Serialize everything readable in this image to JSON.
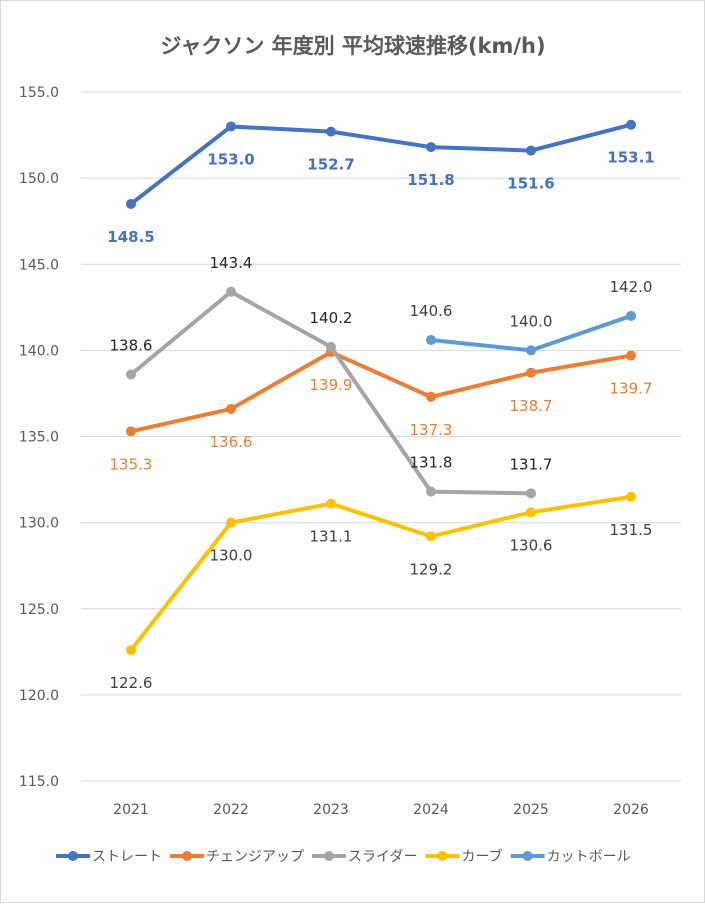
{
  "chart_data": {
    "type": "line",
    "title": "ジャクソン 年度別 平均球速推移(km/h)",
    "xlabel": "",
    "ylabel": "",
    "categories": [
      "2021",
      "2022",
      "2023",
      "2024",
      "2025",
      "2026"
    ],
    "ylim": [
      115,
      155
    ],
    "yticks": [
      "115.0",
      "120.0",
      "125.0",
      "130.0",
      "135.0",
      "140.0",
      "145.0",
      "150.0",
      "155.0"
    ],
    "grid": true,
    "legend_position": "bottom",
    "series": [
      {
        "name": "ストレート",
        "color": "#4472C4",
        "label_color": "#4472C4",
        "label_pos": "below",
        "bold": true,
        "values": [
          148.5,
          153.0,
          152.7,
          151.8,
          151.6,
          153.1
        ],
        "labels": [
          "148.5",
          "153.0",
          "152.7",
          "151.8",
          "151.6",
          "153.1"
        ]
      },
      {
        "name": "チェンジアップ",
        "color": "#ED7D31",
        "label_color": "#ED7D31",
        "label_pos": "below",
        "bold": false,
        "values": [
          135.3,
          136.6,
          139.9,
          137.3,
          138.7,
          139.7
        ],
        "labels": [
          "135.3",
          "136.6",
          "139.9",
          "137.3",
          "138.7",
          "139.7"
        ]
      },
      {
        "name": "スライダー",
        "color": "#A5A5A5",
        "label_color": "#262626",
        "label_pos": "above",
        "bold": false,
        "values": [
          138.6,
          143.4,
          140.2,
          131.8,
          131.7,
          null
        ],
        "labels": [
          "138.6",
          "143.4",
          "140.2",
          "131.8",
          "131.7",
          null
        ]
      },
      {
        "name": "カーブ",
        "color": "#FFC000",
        "label_color": "#404040",
        "label_pos": "below",
        "bold": false,
        "values": [
          122.6,
          130.0,
          131.1,
          129.2,
          130.6,
          131.5
        ],
        "labels": [
          "122.6",
          "130.0",
          "131.1",
          "129.2",
          "130.6",
          "131.5"
        ]
      },
      {
        "name": "カットボール",
        "color": "#5B9BD5",
        "label_color": "#404040",
        "label_pos": "above",
        "bold": false,
        "values": [
          null,
          null,
          null,
          140.6,
          140.0,
          142.0
        ],
        "labels": [
          null,
          null,
          null,
          "140.6",
          "140.0",
          "142.0"
        ]
      }
    ]
  }
}
